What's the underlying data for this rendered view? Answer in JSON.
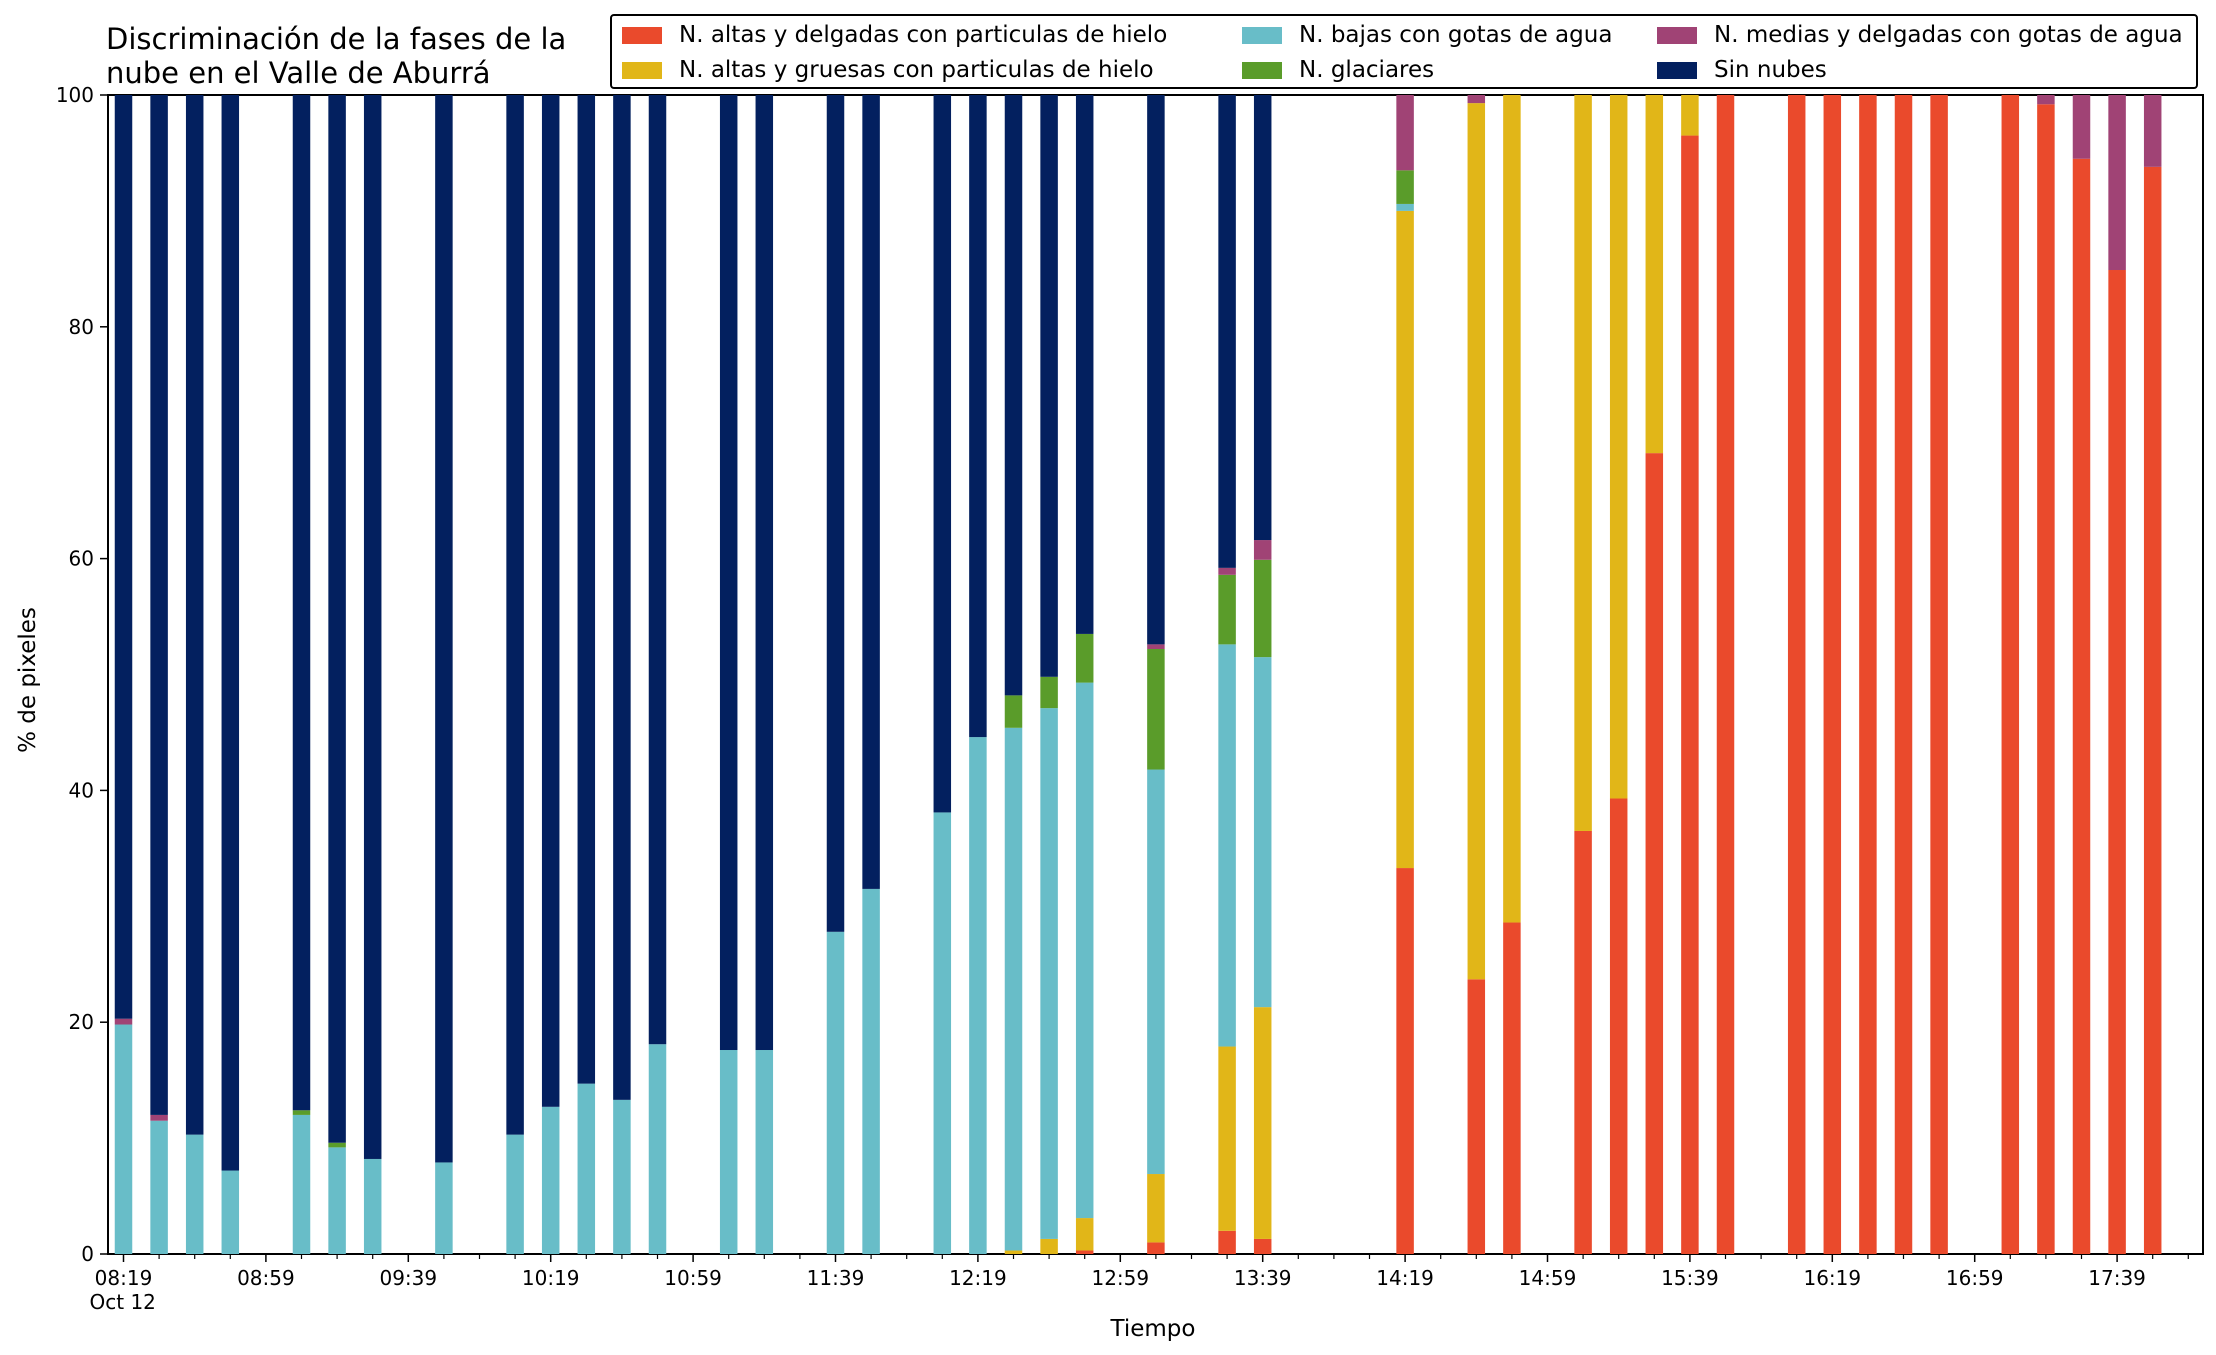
{
  "chart_data": {
    "type": "bar",
    "stacked": true,
    "title": "Discriminación de la fases de la\nnube en el Valle de Aburrá",
    "xlabel": "Tiempo",
    "ylabel": "% de pixeles",
    "ylim": [
      0,
      100
    ],
    "yticks": [
      "0",
      "20",
      "40",
      "60",
      "80",
      "100"
    ],
    "xticks": [
      "08:19\nOct 12",
      "08:59",
      "09:39",
      "10:19",
      "10:59",
      "11:39",
      "12:19",
      "12:59",
      "13:39",
      "14:19",
      "14:59",
      "15:39",
      "16:19",
      "16:59",
      "17:39"
    ],
    "legend_position": "top-right",
    "x": [
      "08:19",
      "08:29",
      "08:39",
      "08:49",
      "08:59",
      "09:09",
      "09:19",
      "09:29",
      "09:39",
      "09:49",
      "09:59",
      "10:09",
      "10:19",
      "10:29",
      "10:39",
      "10:49",
      "10:59",
      "11:09",
      "11:19",
      "11:29",
      "11:39",
      "11:49",
      "11:59",
      "12:09",
      "12:19",
      "12:29",
      "12:39",
      "12:49",
      "12:59",
      "13:09",
      "13:19",
      "13:29",
      "13:39",
      "13:49",
      "13:59",
      "14:09",
      "14:19",
      "14:29",
      "14:39",
      "14:49",
      "14:59",
      "15:09",
      "15:19",
      "15:29",
      "15:39",
      "15:49",
      "15:59",
      "16:09",
      "16:19",
      "16:29",
      "16:39",
      "16:49",
      "16:59",
      "17:09",
      "17:19",
      "17:29",
      "17:39",
      "17:49"
    ],
    "series": [
      {
        "name": "N. altas y delgadas con particulas de hielo",
        "color": "#ea4a2c",
        "values": [
          0,
          0,
          0,
          0,
          null,
          0,
          0,
          0,
          null,
          0,
          null,
          0,
          0,
          0,
          0,
          0,
          null,
          0,
          0,
          null,
          0,
          0,
          null,
          0,
          0,
          0,
          0,
          0.3,
          null,
          1.0,
          null,
          2.0,
          1.3,
          null,
          null,
          null,
          33.3,
          null,
          23.7,
          28.6,
          null,
          36.5,
          39.3,
          69.1,
          96.5,
          100,
          null,
          100,
          100,
          100,
          100,
          100,
          null,
          100,
          99.2,
          94.5,
          84.9,
          93.8
        ]
      },
      {
        "name": "N. altas y gruesas con particulas de hielo",
        "color": "#e1b618",
        "values": [
          0,
          0,
          0,
          0,
          null,
          0,
          0,
          0,
          null,
          0,
          null,
          0,
          0,
          0,
          0,
          0,
          null,
          0,
          0,
          null,
          0,
          0,
          null,
          0,
          0,
          0.3,
          1.3,
          2.8,
          null,
          5.9,
          null,
          15.9,
          20.0,
          null,
          null,
          null,
          56.7,
          null,
          75.6,
          71.4,
          null,
          63.5,
          60.7,
          30.9,
          3.5,
          0,
          null,
          0,
          0,
          0,
          0,
          0,
          null,
          0,
          0,
          0,
          0,
          0
        ]
      },
      {
        "name": "N. bajas con gotas de agua",
        "color": "#68bdc8",
        "values": [
          19.8,
          11.5,
          10.3,
          7.2,
          null,
          12.0,
          9.2,
          8.2,
          null,
          7.9,
          null,
          10.3,
          12.7,
          14.7,
          13.3,
          18.1,
          null,
          17.6,
          17.6,
          null,
          27.8,
          31.5,
          null,
          38.1,
          44.6,
          45.1,
          45.8,
          46.2,
          null,
          34.9,
          null,
          34.7,
          30.2,
          null,
          null,
          null,
          0.6,
          null,
          0,
          0,
          null,
          0,
          0,
          0,
          0,
          0,
          null,
          0,
          0,
          0,
          0,
          0,
          null,
          0,
          0,
          0,
          0,
          0
        ]
      },
      {
        "name": "N. glaciares",
        "color": "#5a9c2a",
        "values": [
          0,
          0,
          0,
          0,
          null,
          0.4,
          0.4,
          0,
          null,
          0,
          null,
          0,
          0,
          0,
          0,
          0,
          null,
          0,
          0,
          null,
          0,
          0,
          null,
          0,
          0,
          2.8,
          2.7,
          4.2,
          null,
          10.4,
          null,
          6.0,
          8.4,
          null,
          null,
          null,
          2.9,
          null,
          0,
          0,
          null,
          0,
          0,
          0,
          0,
          0,
          null,
          0,
          0,
          0,
          0,
          0,
          null,
          0,
          0,
          0,
          0,
          0
        ]
      },
      {
        "name": "N. medias y delgadas con gotas de agua",
        "color": "#a04375",
        "values": [
          0.5,
          0.5,
          0,
          0,
          null,
          0,
          0,
          0,
          null,
          0,
          null,
          0,
          0,
          0,
          0,
          0,
          null,
          0,
          0,
          null,
          0,
          0,
          null,
          0,
          0,
          0,
          0,
          0,
          null,
          0.4,
          null,
          0.6,
          1.7,
          null,
          null,
          null,
          6.5,
          null,
          0.7,
          0,
          null,
          0,
          0,
          0,
          0,
          0,
          null,
          0,
          0,
          0,
          0,
          0,
          null,
          0,
          0.8,
          5.5,
          15.1,
          6.2
        ]
      },
      {
        "name": "Sin nubes",
        "color": "#03205f",
        "values": [
          79.7,
          88.0,
          89.7,
          92.8,
          null,
          87.6,
          90.4,
          91.8,
          null,
          92.1,
          null,
          89.7,
          87.3,
          85.3,
          86.7,
          81.9,
          null,
          82.4,
          82.4,
          null,
          72.2,
          68.5,
          null,
          61.9,
          55.4,
          51.8,
          50.2,
          46.5,
          null,
          47.4,
          null,
          40.8,
          38.4,
          null,
          null,
          null,
          0,
          null,
          0,
          0,
          null,
          0,
          0,
          0,
          0,
          0,
          null,
          0,
          0,
          0,
          0,
          0,
          null,
          0,
          0,
          0,
          0,
          0
        ]
      }
    ]
  }
}
